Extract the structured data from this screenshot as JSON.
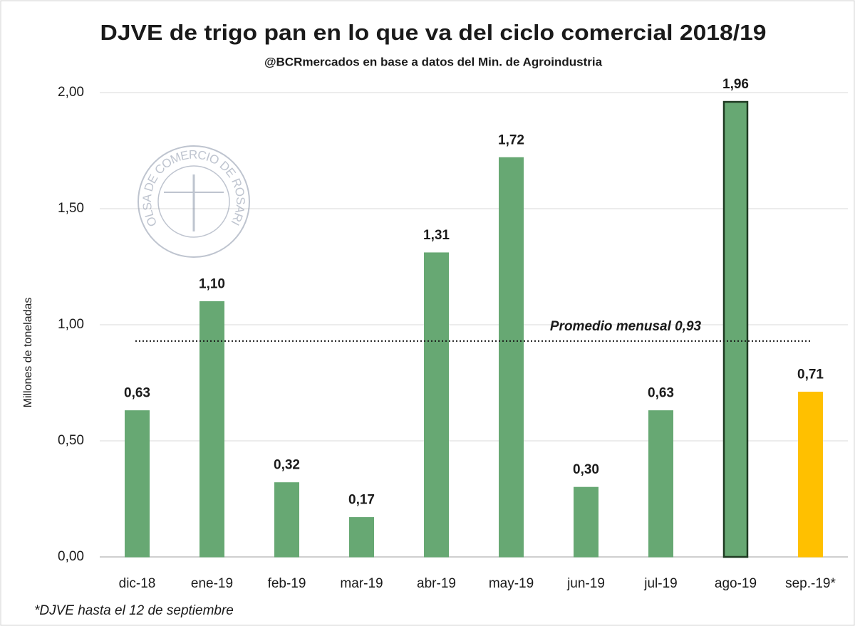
{
  "chart_data": {
    "type": "bar",
    "title": "DJVE de trigo pan en lo que va del ciclo comercial 2018/19",
    "subtitle": "@BCRmercados en base a datos del Min. de Agroindustria",
    "y_label": "Millones de toneladas",
    "footnote": "*DJVE hasta el 12 de septiembre",
    "watermark": "BOLSA DE COMERCIO DE ROSARIO",
    "categories": [
      "dic-18",
      "ene-19",
      "feb-19",
      "mar-19",
      "abr-19",
      "may-19",
      "jun-19",
      "jul-19",
      "ago-19",
      "sep.-19*"
    ],
    "values": [
      0.63,
      1.1,
      0.32,
      0.17,
      1.31,
      1.72,
      0.3,
      0.63,
      1.96,
      0.71
    ],
    "value_labels": [
      "0,63",
      "1,10",
      "0,32",
      "0,17",
      "1,31",
      "1,72",
      "0,30",
      "0,63",
      "1,96",
      "0,71"
    ],
    "colors": [
      "#67a873",
      "#67a873",
      "#67a873",
      "#67a873",
      "#67a873",
      "#67a873",
      "#67a873",
      "#67a873",
      "#67a873",
      "#ffc000"
    ],
    "edgecolors": [
      "#67a873",
      "#67a873",
      "#67a873",
      "#67a873",
      "#67a873",
      "#67a873",
      "#67a873",
      "#67a873",
      "#1f3a22",
      "#ffc000"
    ],
    "ylim": [
      0,
      2
    ],
    "yticks": [
      {
        "value": 0,
        "label": "0,00"
      },
      {
        "value": 0.5,
        "label": "0,50"
      },
      {
        "value": 1,
        "label": "1,00"
      },
      {
        "value": 1.5,
        "label": "1,50"
      },
      {
        "value": 2,
        "label": "2,00"
      }
    ],
    "grid": true,
    "average_line": {
      "value": 0.93,
      "label": "Promedio menusal 0,93"
    }
  }
}
